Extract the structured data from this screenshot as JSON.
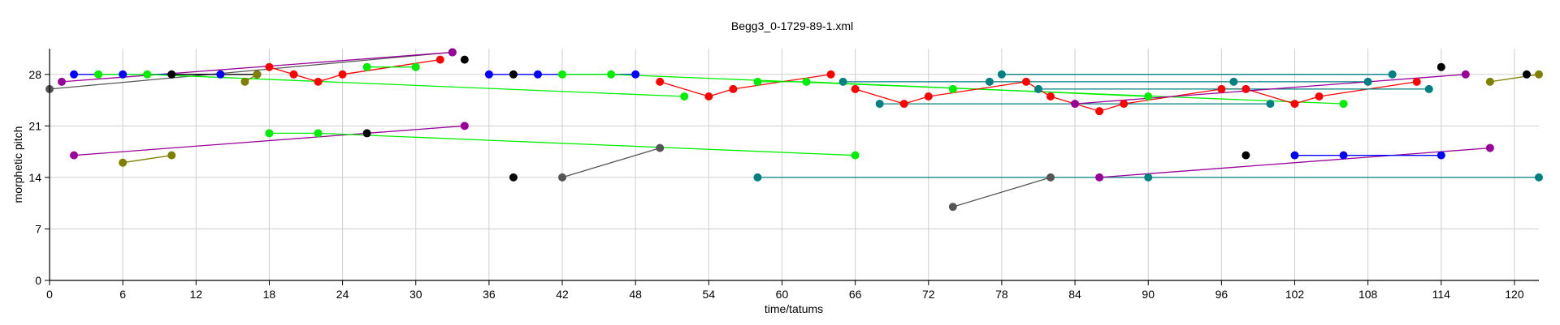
{
  "chart_data": {
    "type": "scatter",
    "title": "Begg3_0-1729-89-1.xml",
    "xlabel": "time/tatums",
    "ylabel": "morphetic pitch",
    "xlim": [
      0,
      122
    ],
    "ylim": [
      0,
      31.5
    ],
    "xticks": [
      0,
      6,
      12,
      18,
      24,
      30,
      36,
      42,
      48,
      54,
      60,
      66,
      72,
      78,
      84,
      90,
      96,
      102,
      108,
      114,
      120
    ],
    "yticks": [
      0,
      7,
      14,
      21,
      28
    ],
    "grid": true,
    "colors": {
      "red": "#ff0000",
      "green": "#00ee00",
      "blue": "#0000ff",
      "black": "#000000",
      "purple": "#990099",
      "teal": "#008080",
      "olive": "#808000",
      "gray": "#555555"
    },
    "series": [
      {
        "color": "gray",
        "points": [
          [
            0,
            26
          ],
          [
            33,
            31
          ]
        ]
      },
      {
        "color": "purple",
        "points": [
          [
            1,
            27
          ],
          [
            33,
            31
          ]
        ]
      },
      {
        "color": "blue",
        "points": [
          [
            2,
            28
          ],
          [
            6,
            28
          ],
          [
            14,
            28
          ]
        ]
      },
      {
        "color": "green",
        "points": [
          [
            4,
            28
          ],
          [
            8,
            28
          ],
          [
            52,
            25
          ]
        ]
      },
      {
        "color": "black",
        "points": [
          [
            10,
            28
          ],
          [
            17,
            28
          ]
        ]
      },
      {
        "color": "olive",
        "points": [
          [
            16,
            27
          ],
          [
            17,
            28
          ]
        ]
      },
      {
        "color": "red",
        "points": [
          [
            18,
            29
          ],
          [
            20,
            28
          ],
          [
            22,
            27
          ],
          [
            24,
            28
          ],
          [
            32,
            30
          ]
        ]
      },
      {
        "color": "green",
        "points": [
          [
            26,
            29
          ],
          [
            30,
            29
          ]
        ]
      },
      {
        "color": "black",
        "points": [
          [
            34,
            30
          ]
        ]
      },
      {
        "color": "blue",
        "points": [
          [
            36,
            28
          ],
          [
            40,
            28
          ],
          [
            48,
            28
          ]
        ]
      },
      {
        "color": "black",
        "points": [
          [
            38,
            28
          ]
        ]
      },
      {
        "color": "green",
        "points": [
          [
            42,
            28
          ],
          [
            46,
            28
          ],
          [
            106,
            24
          ]
        ]
      },
      {
        "color": "red",
        "points": [
          [
            50,
            27
          ],
          [
            54,
            25
          ],
          [
            56,
            26
          ],
          [
            64,
            28
          ]
        ]
      },
      {
        "color": "green",
        "points": [
          [
            58,
            27
          ],
          [
            62,
            27
          ],
          [
            90,
            25
          ]
        ]
      },
      {
        "color": "teal",
        "points": [
          [
            65,
            27
          ],
          [
            77,
            27
          ],
          [
            97,
            27
          ],
          [
            108,
            27
          ]
        ]
      },
      {
        "color": "red",
        "points": [
          [
            66,
            26
          ],
          [
            70,
            24
          ],
          [
            72,
            25
          ],
          [
            80,
            27
          ],
          [
            82,
            25
          ],
          [
            86,
            23
          ],
          [
            88,
            24
          ],
          [
            96,
            26
          ],
          [
            98,
            26
          ],
          [
            102,
            24
          ],
          [
            104,
            25
          ],
          [
            112,
            27
          ]
        ]
      },
      {
        "color": "teal",
        "points": [
          [
            68,
            24
          ],
          [
            100,
            24
          ]
        ]
      },
      {
        "color": "green",
        "points": [
          [
            74,
            26
          ]
        ]
      },
      {
        "color": "teal",
        "points": [
          [
            78,
            28
          ],
          [
            110,
            28
          ]
        ]
      },
      {
        "color": "teal",
        "points": [
          [
            81,
            26
          ],
          [
            113,
            26
          ]
        ]
      },
      {
        "color": "purple",
        "points": [
          [
            84,
            24
          ],
          [
            116,
            28
          ]
        ]
      },
      {
        "color": "black",
        "points": [
          [
            114,
            29
          ]
        ]
      },
      {
        "color": "olive",
        "points": [
          [
            118,
            27
          ],
          [
            122,
            28
          ]
        ]
      },
      {
        "color": "black",
        "points": [
          [
            121,
            28
          ]
        ]
      },
      {
        "color": "purple",
        "points": [
          [
            2,
            17
          ],
          [
            34,
            21
          ]
        ]
      },
      {
        "color": "olive",
        "points": [
          [
            6,
            16
          ],
          [
            10,
            17
          ]
        ]
      },
      {
        "color": "green",
        "points": [
          [
            18,
            20
          ],
          [
            22,
            20
          ],
          [
            66,
            17
          ]
        ]
      },
      {
        "color": "black",
        "points": [
          [
            26,
            20
          ]
        ]
      },
      {
        "color": "black",
        "points": [
          [
            38,
            14
          ]
        ]
      },
      {
        "color": "gray",
        "points": [
          [
            42,
            14
          ],
          [
            50,
            18
          ]
        ]
      },
      {
        "color": "teal",
        "points": [
          [
            58,
            14
          ],
          [
            90,
            14
          ],
          [
            122,
            14
          ]
        ]
      },
      {
        "color": "gray",
        "points": [
          [
            74,
            10
          ],
          [
            82,
            14
          ]
        ]
      },
      {
        "color": "purple",
        "points": [
          [
            86,
            14
          ],
          [
            118,
            18
          ]
        ]
      },
      {
        "color": "black",
        "points": [
          [
            98,
            17
          ]
        ]
      },
      {
        "color": "blue",
        "points": [
          [
            102,
            17
          ],
          [
            106,
            17
          ],
          [
            114,
            17
          ]
        ]
      }
    ]
  }
}
